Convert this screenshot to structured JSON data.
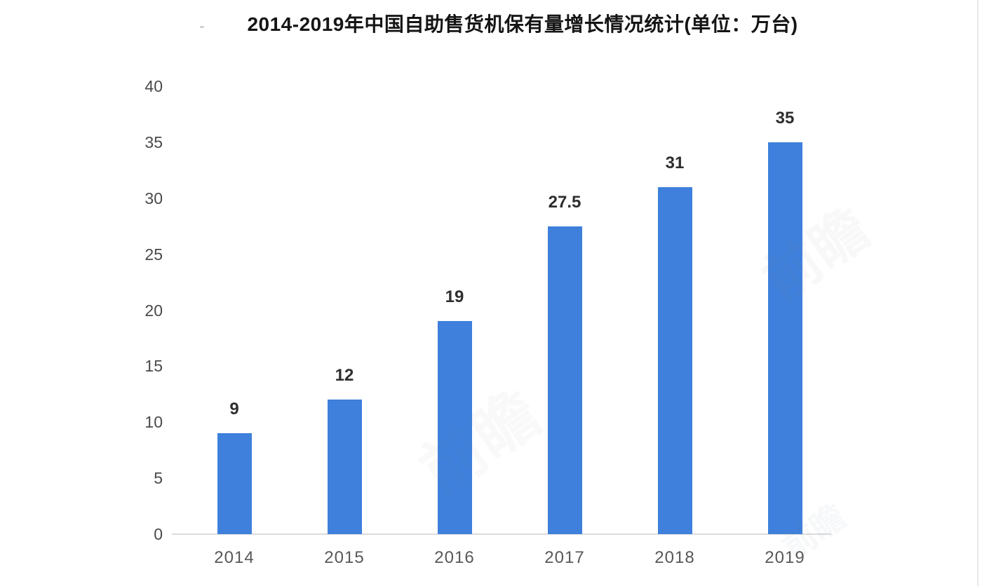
{
  "chart_data": {
    "type": "bar",
    "title": "2014-2019年中国自助售货机保有量增长情况统计(单位：万台)",
    "categories": [
      "2014",
      "2015",
      "2016",
      "2017",
      "2018",
      "2019"
    ],
    "values": [
      9,
      12,
      19,
      27.5,
      31,
      35
    ],
    "value_labels": [
      "9",
      "12",
      "19",
      "27.5",
      "31",
      "35"
    ],
    "unit": "万台",
    "xlabel": "",
    "ylabel": "",
    "ylim": [
      0,
      40
    ],
    "yticks": [
      0,
      5,
      10,
      15,
      20,
      25,
      30,
      35,
      40
    ],
    "bar_color": "#3e80dc",
    "grid": false,
    "legend_position": "none",
    "background_color": "#ffffff"
  },
  "watermark": {
    "text": "前瞻"
  }
}
